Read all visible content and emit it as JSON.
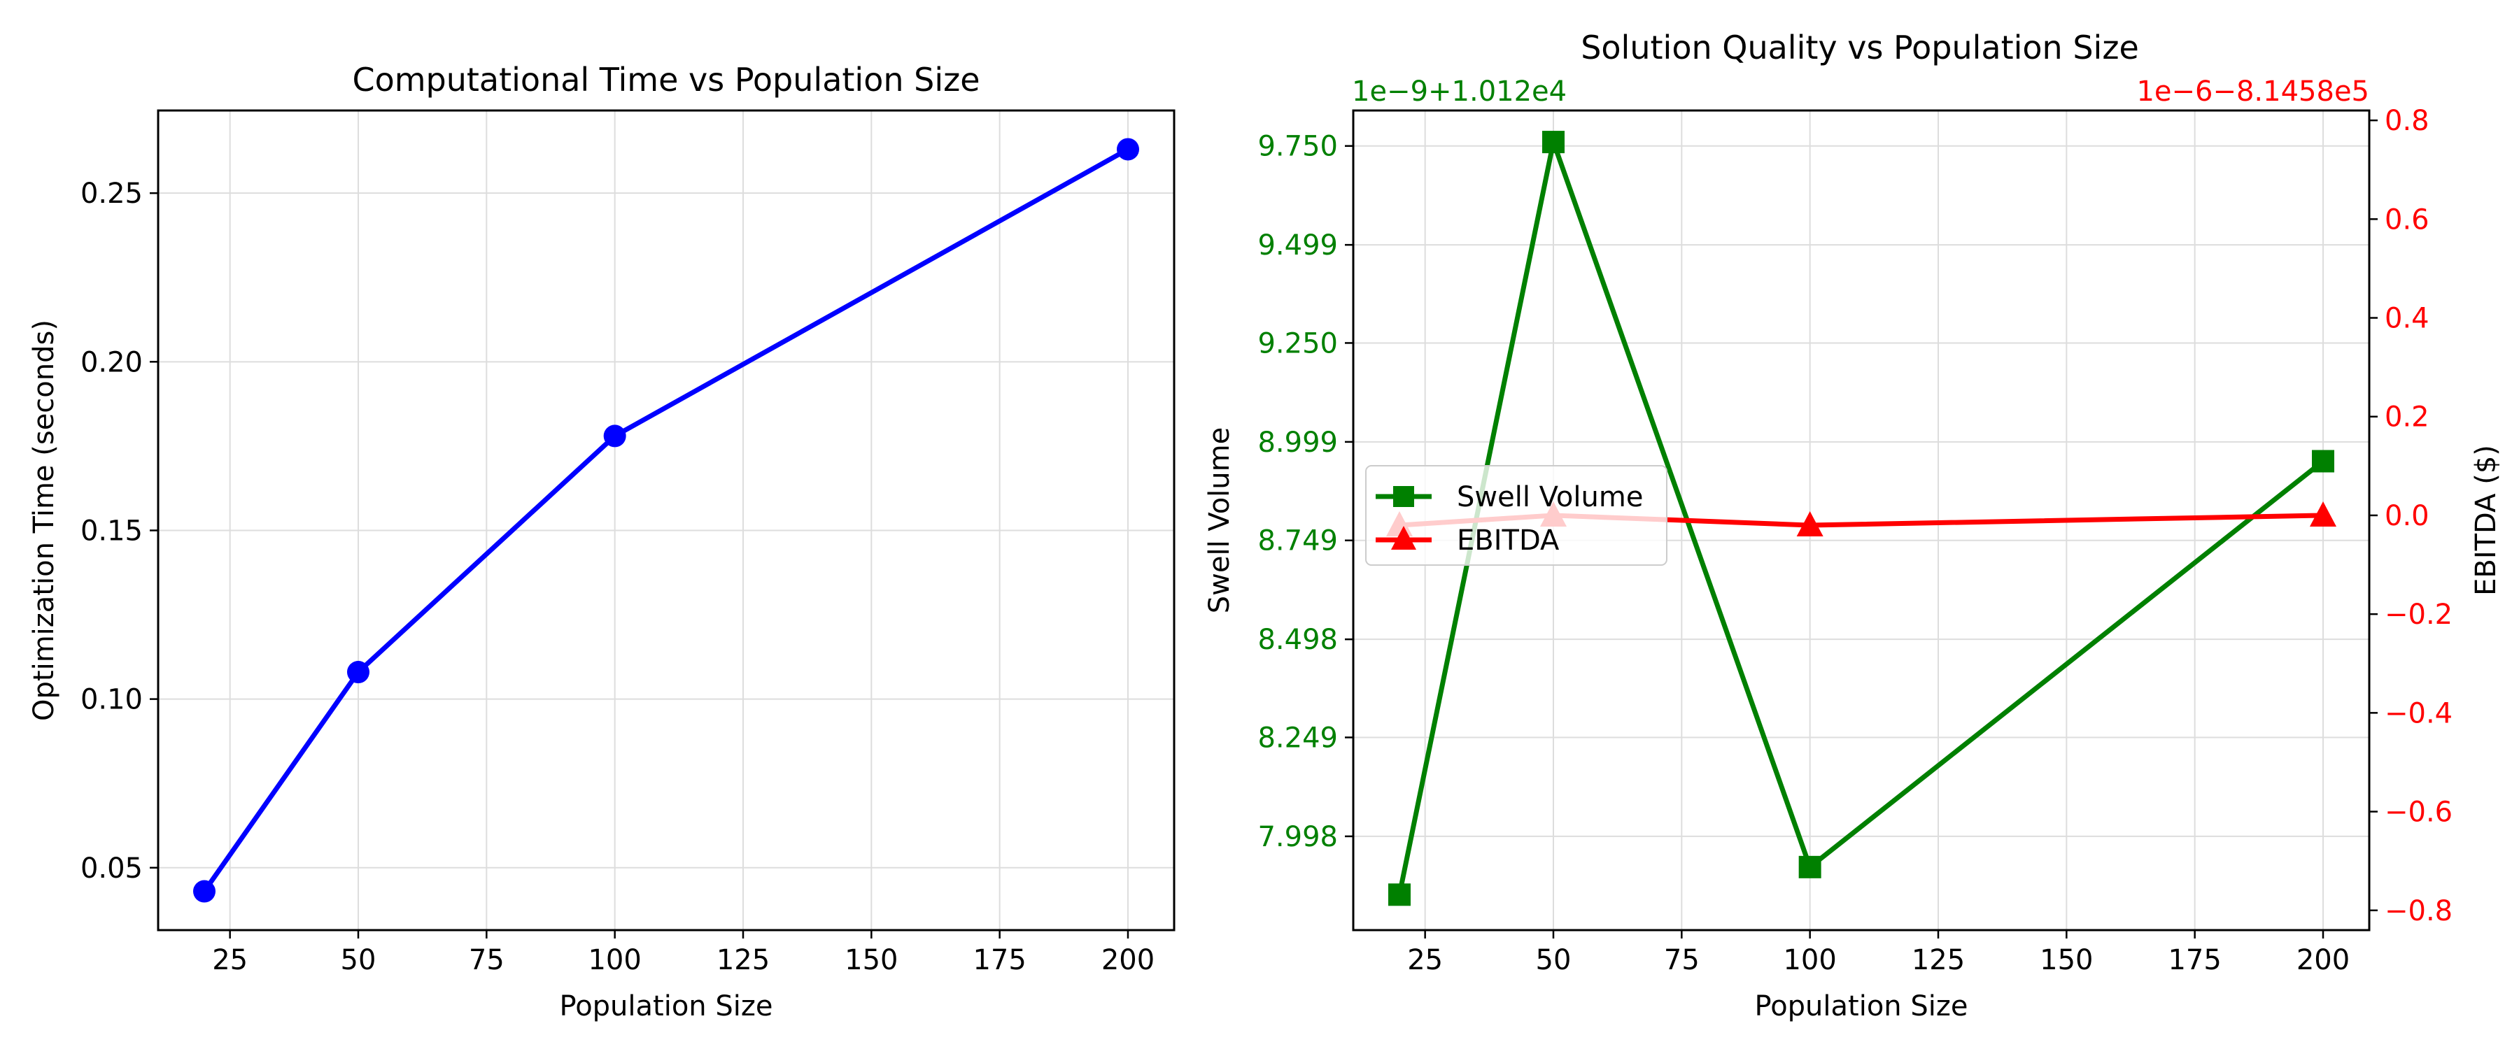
{
  "chart_data": [
    {
      "type": "line",
      "title": "Computational Time vs Population Size",
      "xlabel": "Population Size",
      "ylabel": "Optimization Time (seconds)",
      "x": [
        20,
        50,
        100,
        200
      ],
      "series": [
        {
          "values": [
            0.043,
            0.108,
            0.178,
            0.263
          ],
          "color": "#0000ff",
          "marker": "circle"
        }
      ],
      "xlim": [
        11,
        209
      ],
      "ylim": [
        0.0315,
        0.2745
      ],
      "xticks": [
        25,
        50,
        75,
        100,
        125,
        150,
        175,
        200
      ],
      "yticks": [
        0.05,
        0.1,
        0.15,
        0.2,
        0.25
      ],
      "ytick_labels": [
        "0.05",
        "0.10",
        "0.15",
        "0.20",
        "0.25"
      ],
      "grid": true
    },
    {
      "type": "line",
      "title": "Solution Quality vs Population Size",
      "xlabel": "Population Size",
      "ylabel": "Swell Volume",
      "ylabel_right": "EBITDA ($)",
      "x": [
        20,
        50,
        100,
        200
      ],
      "series": [
        {
          "name": "Swell Volume",
          "axis": "left",
          "values": [
            7.85,
            9.76,
            7.92,
            8.95
          ],
          "color": "#008000",
          "marker": "square"
        },
        {
          "name": "EBITDA",
          "axis": "right",
          "values": [
            -0.02,
            0.0,
            -0.02,
            0.0
          ],
          "color": "#ff0000",
          "marker": "triangle"
        }
      ],
      "xlim": [
        11,
        209
      ],
      "ylim_left": [
        7.76,
        9.84
      ],
      "ylim_right": [
        -0.84,
        0.82
      ],
      "xticks": [
        25,
        50,
        75,
        100,
        125,
        150,
        175,
        200
      ],
      "yticks_left": [
        7.998,
        8.249,
        8.498,
        8.749,
        8.999,
        9.25,
        9.499,
        9.75
      ],
      "ytick_labels_left": [
        "7.998",
        "8.249",
        "8.498",
        "8.749",
        "8.999",
        "9.250",
        "9.499",
        "9.750"
      ],
      "yticks_right": [
        -0.8,
        -0.6,
        -0.4,
        -0.2,
        0.0,
        0.2,
        0.4,
        0.6,
        0.8
      ],
      "ytick_labels_right": [
        "−0.8",
        "−0.6",
        "−0.4",
        "−0.2",
        "0.0",
        "0.2",
        "0.4",
        "0.6",
        "0.8"
      ],
      "offset_left": "1e−9+1.012e4",
      "offset_right": "1e−6−8.1458e5",
      "legend": "center-left",
      "grid": true
    }
  ]
}
